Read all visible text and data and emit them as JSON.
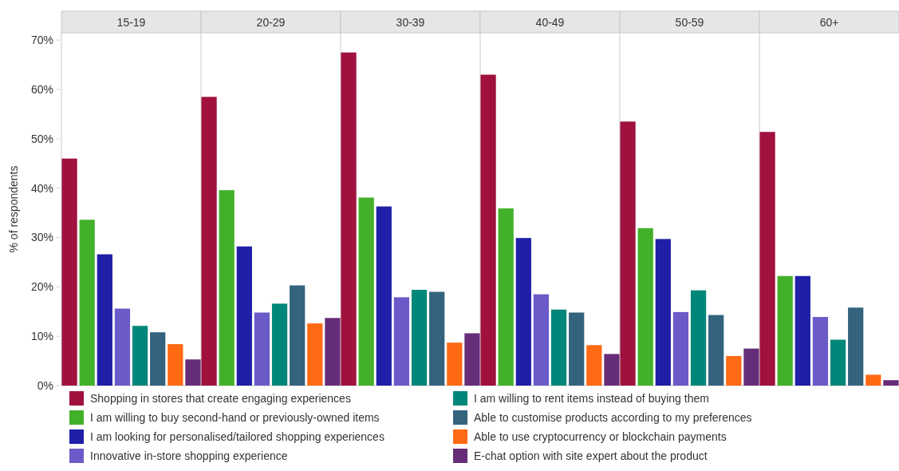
{
  "chart_data": {
    "type": "bar",
    "ylabel": "% of respondents",
    "categories": [
      "15-19",
      "20-29",
      "30-39",
      "40-49",
      "50-59",
      "60+"
    ],
    "ylim": [
      0,
      71.5
    ],
    "yticks": [
      {
        "value": 0,
        "label": "0%"
      },
      {
        "value": 10,
        "label": "10%"
      },
      {
        "value": 20,
        "label": "20%"
      },
      {
        "value": 30,
        "label": "30%"
      },
      {
        "value": 40,
        "label": "40%"
      },
      {
        "value": 50,
        "label": "50%"
      },
      {
        "value": 60,
        "label": "60%"
      },
      {
        "value": 70,
        "label": "70%"
      }
    ],
    "grid": false,
    "legend": "bottom",
    "series": [
      {
        "name": "Shopping in stores that create engaging experiences",
        "color": "#a0113e",
        "values": [
          46.0,
          58.5,
          67.5,
          63.0,
          53.5,
          51.4
        ]
      },
      {
        "name": "I am willing to buy second-hand or previously-owned items",
        "color": "#43b02a",
        "values": [
          33.6,
          39.6,
          38.1,
          35.9,
          31.9,
          22.2
        ]
      },
      {
        "name": "I am looking for personalised/tailored shopping experiences",
        "color": "#1f1fa8",
        "values": [
          26.6,
          28.2,
          36.3,
          29.9,
          29.7,
          22.2
        ]
      },
      {
        "name": "Innovative in-store shopping experience",
        "color": "#6a5bc8",
        "values": [
          15.6,
          14.8,
          17.9,
          18.5,
          14.9,
          13.9
        ]
      },
      {
        "name": "I am willing to rent items instead of buying them",
        "color": "#00877a",
        "values": [
          12.1,
          16.6,
          19.4,
          15.4,
          19.3,
          9.3
        ]
      },
      {
        "name": "Able to customise products according to my preferences",
        "color": "#34637e",
        "values": [
          10.8,
          20.3,
          19.0,
          14.8,
          14.3,
          15.8
        ]
      },
      {
        "name": "Able to use cryptocurrency or blockchain payments",
        "color": "#ff6a13",
        "values": [
          8.4,
          12.6,
          8.7,
          8.2,
          6.0,
          2.2
        ]
      },
      {
        "name": "E-chat option with site expert about the product",
        "color": "#662d78",
        "values": [
          5.3,
          13.7,
          10.6,
          6.4,
          7.5,
          1.1
        ]
      }
    ]
  }
}
